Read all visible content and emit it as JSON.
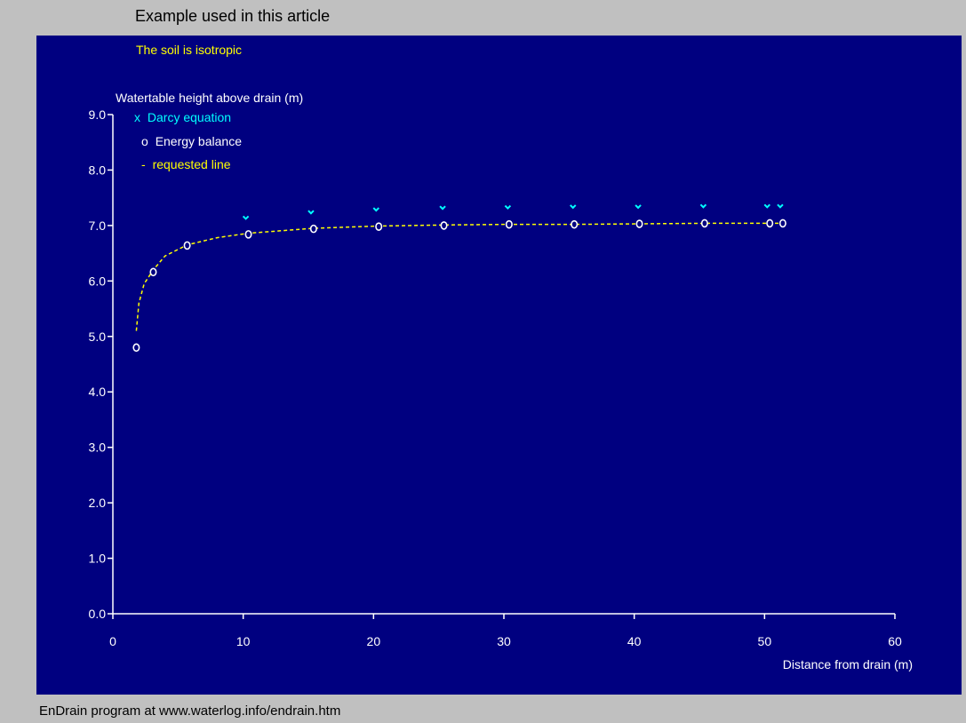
{
  "window": {
    "title": "Example used in this article",
    "footer": "EnDrain program at www.waterlog.info/endrain.htm"
  },
  "colors": {
    "background": "#c0c0c0",
    "plot_background": "#000080",
    "axis": "#ffffff",
    "darcy": "#00ffff",
    "energy": "#ffffff",
    "requested": "#ffff00",
    "subtitle": "#ffff00"
  },
  "chart_data": {
    "type": "scatter",
    "subtitle": "The soil is isotropic",
    "ylabel": "Watertable height above drain (m)",
    "xlabel": "Distance from drain (m)",
    "xlim": [
      0,
      60
    ],
    "ylim": [
      0,
      9
    ],
    "x_ticks": [
      0,
      10,
      20,
      30,
      40,
      50,
      60
    ],
    "y_ticks": [
      0.0,
      1.0,
      2.0,
      3.0,
      4.0,
      5.0,
      6.0,
      7.0,
      8.0,
      9.0
    ],
    "y_tick_labels": [
      "0.0",
      "1.0",
      "2.0",
      "3.0",
      "4.0",
      "5.0",
      "6.0",
      "7.0",
      "8.0",
      "9.0"
    ],
    "grid": false,
    "legend": {
      "placement": "top-left",
      "entries": [
        {
          "symbol": "x",
          "label": "Darcy equation"
        },
        {
          "symbol": "o",
          "label": "Energy balance"
        },
        {
          "symbol": "-",
          "label": "requested line"
        }
      ]
    },
    "series": [
      {
        "name": "Darcy equation",
        "marker": "x",
        "x": [
          10.2,
          15.2,
          20.2,
          25.3,
          30.3,
          35.3,
          40.3,
          45.3,
          50.2,
          51.2
        ],
        "y": [
          7.12,
          7.22,
          7.27,
          7.3,
          7.31,
          7.32,
          7.32,
          7.33,
          7.33,
          7.33
        ]
      },
      {
        "name": "Energy balance",
        "marker": "o",
        "x": [
          1.8,
          3.1,
          5.7,
          10.4,
          15.4,
          20.4,
          25.4,
          30.4,
          35.4,
          40.4,
          45.4,
          50.4,
          51.4
        ],
        "y": [
          4.8,
          6.16,
          6.64,
          6.84,
          6.94,
          6.98,
          7.0,
          7.02,
          7.02,
          7.03,
          7.04,
          7.04,
          7.04
        ]
      },
      {
        "name": "requested line",
        "marker": "-",
        "x": [
          1.8,
          2.0,
          2.4,
          3.1,
          4.0,
          5.7,
          8.0,
          10.4,
          15.4,
          20.4,
          25.4,
          30.4,
          35.4,
          40.4,
          45.4,
          50.4,
          51.4
        ],
        "y": [
          5.1,
          5.6,
          5.95,
          6.2,
          6.45,
          6.65,
          6.78,
          6.86,
          6.95,
          6.99,
          7.01,
          7.02,
          7.02,
          7.03,
          7.04,
          7.04,
          7.04
        ]
      }
    ]
  }
}
